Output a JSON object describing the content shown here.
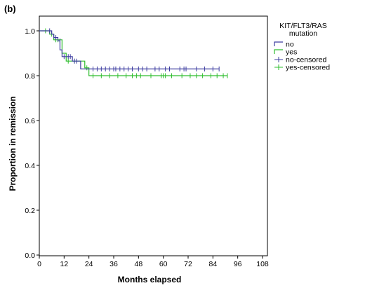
{
  "panel_label": "(b)",
  "chart_data": {
    "type": "line",
    "subtype": "kaplan-meier step",
    "xlabel": "Months elapsed",
    "ylabel": "Proportion in remission",
    "xlim": [
      0,
      108
    ],
    "ylim": [
      0.0,
      1.0
    ],
    "x_ticks": [
      0,
      12,
      24,
      36,
      48,
      60,
      72,
      84,
      96,
      108
    ],
    "y_ticks": [
      0.0,
      0.2,
      0.4,
      0.6,
      0.8,
      1.0
    ],
    "y_tick_labels": [
      "0.0",
      "0.2",
      "0.4",
      "0.6",
      "0.8",
      "1.0"
    ],
    "grid": false,
    "legend": {
      "title_line1": "KIT/FLT3/RAS",
      "title_line2": "mutation",
      "position": "right",
      "entries": [
        "no",
        "yes",
        "no-censored",
        "yes-censored"
      ]
    },
    "colors": {
      "no": "#3c3ca0",
      "yes": "#2ebd2e"
    },
    "series": [
      {
        "name": "no",
        "steps": [
          [
            0,
            1.0
          ],
          [
            6,
            0.985
          ],
          [
            7,
            0.97
          ],
          [
            9,
            0.955
          ],
          [
            10,
            0.915
          ],
          [
            11,
            0.885
          ],
          [
            16,
            0.865
          ],
          [
            20,
            0.83
          ],
          [
            87,
            0.83
          ]
        ],
        "censored": [
          [
            5,
            1.0
          ],
          [
            8,
            0.97
          ],
          [
            10,
            0.955
          ],
          [
            12,
            0.885
          ],
          [
            14,
            0.885
          ],
          [
            15,
            0.885
          ],
          [
            17,
            0.865
          ],
          [
            18,
            0.865
          ],
          [
            26,
            0.83
          ],
          [
            28,
            0.83
          ],
          [
            30,
            0.83
          ],
          [
            32,
            0.83
          ],
          [
            34,
            0.83
          ],
          [
            36,
            0.83
          ],
          [
            37,
            0.83
          ],
          [
            39,
            0.83
          ],
          [
            41,
            0.83
          ],
          [
            43,
            0.83
          ],
          [
            45,
            0.83
          ],
          [
            48,
            0.83
          ],
          [
            50,
            0.83
          ],
          [
            52,
            0.83
          ],
          [
            56,
            0.83
          ],
          [
            58,
            0.83
          ],
          [
            61,
            0.83
          ],
          [
            63,
            0.83
          ],
          [
            68,
            0.83
          ],
          [
            70,
            0.83
          ],
          [
            71,
            0.83
          ],
          [
            76,
            0.83
          ],
          [
            80,
            0.83
          ],
          [
            84,
            0.83
          ],
          [
            87,
            0.83
          ]
        ]
      },
      {
        "name": "yes",
        "steps": [
          [
            0,
            1.0
          ],
          [
            5,
            0.985
          ],
          [
            7,
            0.96
          ],
          [
            11,
            0.9
          ],
          [
            13,
            0.865
          ],
          [
            22,
            0.835
          ],
          [
            24,
            0.8
          ],
          [
            91,
            0.8
          ]
        ],
        "censored": [
          [
            3,
            1.0
          ],
          [
            6,
            0.985
          ],
          [
            8,
            0.96
          ],
          [
            9,
            0.96
          ],
          [
            14,
            0.865
          ],
          [
            17,
            0.865
          ],
          [
            23,
            0.835
          ],
          [
            26,
            0.8
          ],
          [
            30,
            0.8
          ],
          [
            34,
            0.8
          ],
          [
            38,
            0.8
          ],
          [
            42,
            0.8
          ],
          [
            45,
            0.8
          ],
          [
            47,
            0.8
          ],
          [
            49,
            0.8
          ],
          [
            54,
            0.8
          ],
          [
            59,
            0.8
          ],
          [
            60,
            0.8
          ],
          [
            61,
            0.8
          ],
          [
            64,
            0.8
          ],
          [
            69,
            0.8
          ],
          [
            73,
            0.8
          ],
          [
            76,
            0.8
          ],
          [
            79,
            0.8
          ],
          [
            83,
            0.8
          ],
          [
            86,
            0.8
          ],
          [
            89,
            0.8
          ],
          [
            91,
            0.8
          ]
        ]
      }
    ]
  }
}
